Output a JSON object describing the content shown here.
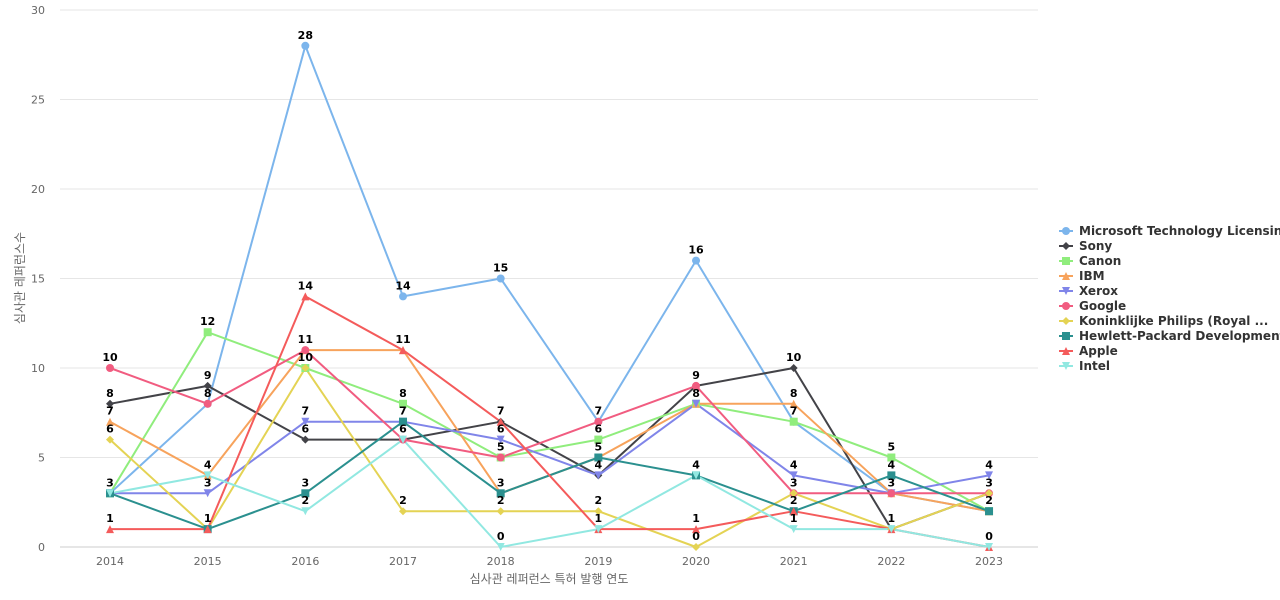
{
  "chart_data": {
    "type": "line",
    "xlabel": "심사관 레퍼런스 특허 발행 연도",
    "ylabel": "심사관 레퍼런스수",
    "ylim": [
      0,
      30
    ],
    "yticks": [
      0,
      5,
      10,
      15,
      20,
      25,
      30
    ],
    "grid": true,
    "legend": "right",
    "categories": [
      "2014",
      "2015",
      "2016",
      "2017",
      "2018",
      "2019",
      "2020",
      "2021",
      "2022",
      "2023"
    ],
    "series": [
      {
        "name": "Microsoft Technology Licensing",
        "color": "#7cb5ec",
        "marker": "circle",
        "values": [
          3,
          8,
          28,
          14,
          15,
          7,
          16,
          7,
          3,
          2
        ]
      },
      {
        "name": "Sony",
        "color": "#434348",
        "marker": "diamond",
        "values": [
          8,
          9,
          6,
          6,
          7,
          4,
          9,
          10,
          1,
          3
        ]
      },
      {
        "name": "Canon",
        "color": "#90ed7d",
        "marker": "square",
        "values": [
          3,
          12,
          10,
          8,
          5,
          6,
          8,
          7,
          5,
          2
        ]
      },
      {
        "name": "IBM",
        "color": "#f7a35c",
        "marker": "triangle",
        "values": [
          7,
          4,
          11,
          11,
          3,
          5,
          8,
          8,
          3,
          2
        ]
      },
      {
        "name": "Xerox",
        "color": "#8085e9",
        "marker": "triangle-down",
        "values": [
          3,
          3,
          7,
          7,
          6,
          4,
          8,
          4,
          3,
          4
        ]
      },
      {
        "name": "Google",
        "color": "#f15c80",
        "marker": "circle",
        "values": [
          10,
          8,
          11,
          6,
          5,
          7,
          9,
          3,
          3,
          3
        ]
      },
      {
        "name": "Koninklijke Philips (Royal ...",
        "color": "#e4d354",
        "marker": "diamond",
        "values": [
          6,
          1,
          10,
          2,
          2,
          2,
          0,
          3,
          1,
          3
        ]
      },
      {
        "name": "Hewlett-Packard Development",
        "color": "#2b908f",
        "marker": "square",
        "values": [
          3,
          1,
          3,
          7,
          3,
          5,
          4,
          2,
          4,
          2
        ]
      },
      {
        "name": "Apple",
        "color": "#f45b5b",
        "marker": "triangle",
        "values": [
          1,
          1,
          14,
          11,
          7,
          1,
          1,
          2,
          1,
          0
        ]
      },
      {
        "name": "Intel",
        "color": "#91e8e1",
        "marker": "triangle-down",
        "values": [
          3,
          4,
          2,
          6,
          0,
          1,
          4,
          1,
          1,
          0
        ]
      }
    ],
    "data_labels": [
      {
        "category": "2014",
        "values": [
          10,
          8,
          7,
          6,
          3,
          1
        ]
      },
      {
        "category": "2015",
        "values": [
          12,
          9,
          8,
          4,
          3,
          1
        ]
      },
      {
        "category": "2016",
        "values": [
          28,
          14,
          11,
          10,
          7,
          6,
          3,
          2
        ]
      },
      {
        "category": "2017",
        "values": [
          14,
          11,
          8,
          7,
          6,
          2
        ]
      },
      {
        "category": "2018",
        "values": [
          15,
          7,
          6,
          5,
          3,
          2,
          0
        ]
      },
      {
        "category": "2019",
        "values": [
          7,
          6,
          5,
          4,
          2,
          1
        ]
      },
      {
        "category": "2020",
        "values": [
          16,
          9,
          8,
          4,
          1,
          0
        ]
      },
      {
        "category": "2021",
        "values": [
          10,
          8,
          7,
          4,
          3,
          2,
          1
        ]
      },
      {
        "category": "2022",
        "values": [
          5,
          4,
          3,
          1
        ]
      },
      {
        "category": "2023",
        "values": [
          4,
          3,
          2,
          0
        ]
      }
    ]
  }
}
